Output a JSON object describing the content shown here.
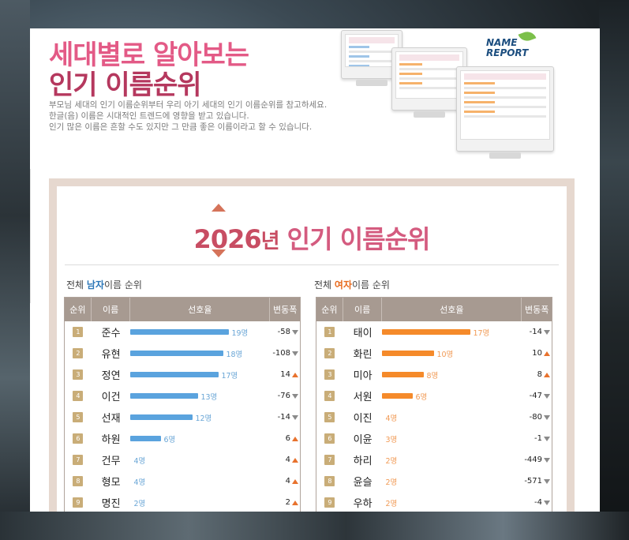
{
  "hero": {
    "title_line1": "세대별로 알아보는",
    "title_line2": "인기 이름순위",
    "desc_line1": "부모님 세대의 인기 이름순위부터 우리 아기 세대의 인기 이름순위를 참고하세요.",
    "desc_line2": "한글(음) 이름은 시대적인 트렌드에 영향을 받고 있습니다.",
    "desc_line3": "인기 많은 이름은 흔할 수도 있지만 그 만큼 좋은 이름이라고 할 수 있습니다.",
    "logo_line1": "NAME",
    "logo_line2": "REPORT"
  },
  "ranking": {
    "year": "2026",
    "year_suffix": "년",
    "title": "인기 이름순위",
    "male_section_prefix": "전체 ",
    "male_section_highlight": "남자",
    "male_section_suffix": "이름 순위",
    "female_section_prefix": "전체 ",
    "female_section_highlight": "여자",
    "female_section_suffix": "이름 순위",
    "headers": {
      "rank": "순위",
      "name": "이름",
      "preference": "선호율",
      "change": "변동폭"
    },
    "max_count": 19,
    "male": [
      {
        "rank": "1",
        "name": "준수",
        "count": 19,
        "count_label": "19명",
        "change": "-58",
        "dir": "down"
      },
      {
        "rank": "2",
        "name": "유현",
        "count": 18,
        "count_label": "18명",
        "change": "-108",
        "dir": "down"
      },
      {
        "rank": "3",
        "name": "정연",
        "count": 17,
        "count_label": "17명",
        "change": "14",
        "dir": "up"
      },
      {
        "rank": "4",
        "name": "이건",
        "count": 13,
        "count_label": "13명",
        "change": "-76",
        "dir": "down"
      },
      {
        "rank": "5",
        "name": "선재",
        "count": 12,
        "count_label": "12명",
        "change": "-14",
        "dir": "down"
      },
      {
        "rank": "6",
        "name": "하원",
        "count": 6,
        "count_label": "6명",
        "change": "6",
        "dir": "up"
      },
      {
        "rank": "7",
        "name": "건무",
        "count": 4,
        "count_label": "4명",
        "change": "4",
        "dir": "up"
      },
      {
        "rank": "8",
        "name": "형모",
        "count": 4,
        "count_label": "4명",
        "change": "4",
        "dir": "up"
      },
      {
        "rank": "9",
        "name": "명진",
        "count": 2,
        "count_label": "2명",
        "change": "2",
        "dir": "up"
      }
    ],
    "female": [
      {
        "rank": "1",
        "name": "태이",
        "count": 17,
        "count_label": "17명",
        "change": "-14",
        "dir": "down"
      },
      {
        "rank": "2",
        "name": "화린",
        "count": 10,
        "count_label": "10명",
        "change": "10",
        "dir": "up"
      },
      {
        "rank": "3",
        "name": "미아",
        "count": 8,
        "count_label": "8명",
        "change": "8",
        "dir": "up"
      },
      {
        "rank": "4",
        "name": "서원",
        "count": 6,
        "count_label": "6명",
        "change": "-47",
        "dir": "down"
      },
      {
        "rank": "5",
        "name": "이진",
        "count": 4,
        "count_label": "4명",
        "change": "-80",
        "dir": "down"
      },
      {
        "rank": "6",
        "name": "이윤",
        "count": 3,
        "count_label": "3명",
        "change": "-1",
        "dir": "down"
      },
      {
        "rank": "7",
        "name": "하리",
        "count": 2,
        "count_label": "2명",
        "change": "-449",
        "dir": "down"
      },
      {
        "rank": "8",
        "name": "윤슬",
        "count": 2,
        "count_label": "2명",
        "change": "-571",
        "dir": "down"
      },
      {
        "rank": "9",
        "name": "우하",
        "count": 2,
        "count_label": "2명",
        "change": "-4",
        "dir": "down"
      }
    ]
  },
  "colors": {
    "male_bar": "#5aa3de",
    "female_bar": "#f58a2a",
    "title_pink": "#e35a86"
  }
}
